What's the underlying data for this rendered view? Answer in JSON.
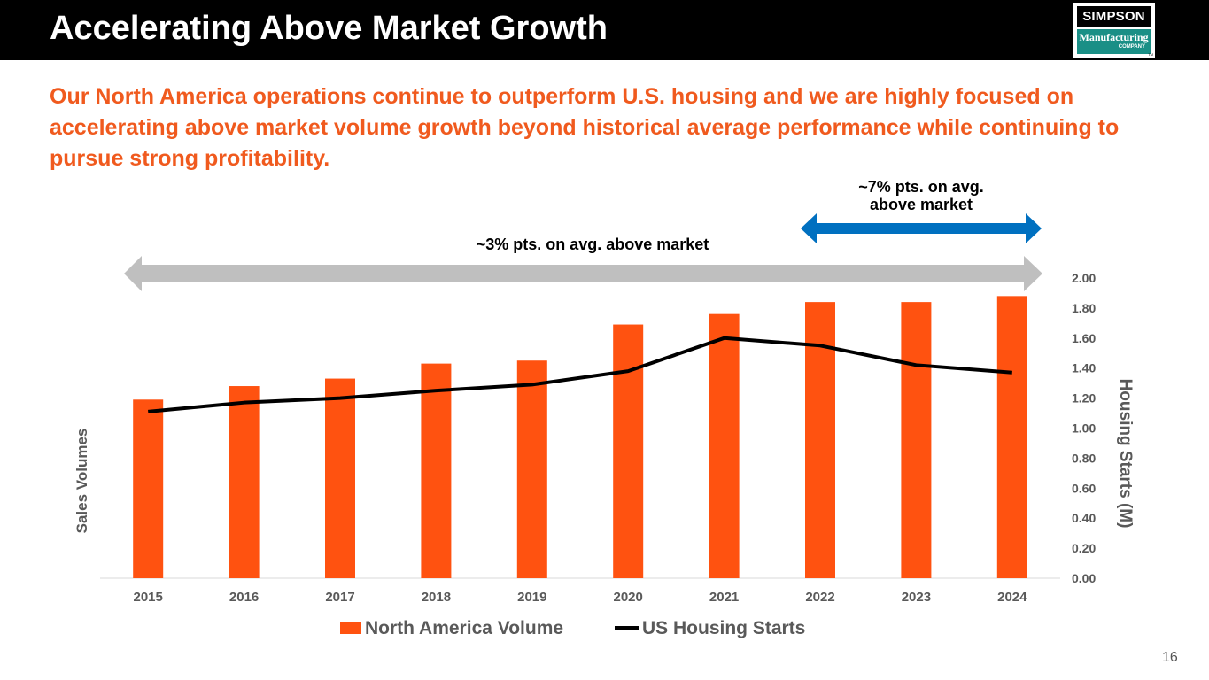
{
  "header": {
    "title": "Accelerating Above Market Growth"
  },
  "logo": {
    "top": "SIMPSON",
    "middle": "Manufacturing",
    "bottom": "COMPANY",
    "tm": "TM"
  },
  "subtitle": "Our North America operations continue to outperform U.S. housing and we are highly focused on accelerating above market volume growth beyond historical average performance while continuing to pursue strong profitability.",
  "annotations": {
    "long": "~3% pts. on avg. above market",
    "short_line1": "~7% pts. on avg.",
    "short_line2": "above market"
  },
  "page_number": "16",
  "colors": {
    "bar": "#ff5210",
    "line": "#000000",
    "accent": "#f05a1e",
    "gray_arrow": "#bfbfbf",
    "blue_arrow": "#0070c0"
  },
  "chart_data": {
    "type": "bar",
    "categories": [
      "2015",
      "2016",
      "2017",
      "2018",
      "2019",
      "2020",
      "2021",
      "2022",
      "2023",
      "2024"
    ],
    "series": [
      {
        "name": "North America Volume",
        "type": "bar",
        "axis": "left",
        "values": [
          1.19,
          1.28,
          1.33,
          1.43,
          1.45,
          1.69,
          1.76,
          1.84,
          1.84,
          1.88
        ]
      },
      {
        "name": "US Housing Starts",
        "type": "line",
        "axis": "right",
        "values": [
          1.11,
          1.17,
          1.2,
          1.25,
          1.29,
          1.38,
          1.6,
          1.55,
          1.42,
          1.37
        ]
      }
    ],
    "xlabel": "",
    "ylabel_left": "Sales Volumes",
    "ylabel_right": "Housing Starts (M)",
    "ylim_right": [
      0,
      2
    ],
    "yticks_right": [
      "0.00",
      "0.20",
      "0.40",
      "0.60",
      "0.80",
      "1.00",
      "1.20",
      "1.40",
      "1.60",
      "1.80",
      "2.00"
    ],
    "legend": [
      "North America Volume",
      "US Housing Starts"
    ],
    "legend_position": "bottom"
  }
}
